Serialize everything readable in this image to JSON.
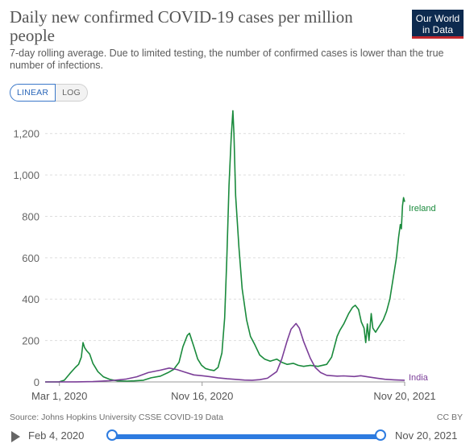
{
  "header": {
    "title": "Daily new confirmed COVID-19 cases per million people",
    "subtitle": "7-day rolling average. Due to limited testing, the number of confirmed cases is lower than the true number of infections.",
    "logo_line1": "Our World",
    "logo_line2": "in Data"
  },
  "scale_toggle": {
    "linear_label": "LINEAR",
    "log_label": "LOG",
    "selected": "LINEAR"
  },
  "footer": {
    "source": "Source: Johns Hopkins University CSSE COVID-19 Data",
    "license": "CC BY"
  },
  "timeline": {
    "start_label": "Feb 4, 2020",
    "end_label": "Nov 20, 2021"
  },
  "colors": {
    "ireland": "#1a8a3c",
    "india": "#7b3e98",
    "axis": "#666666",
    "grid": "#dddddd"
  },
  "chart_data": {
    "type": "line",
    "title": "Daily new confirmed COVID-19 cases per million people",
    "xlabel": "",
    "ylabel": "",
    "xlim": [
      "2020-02-04",
      "2021-11-20"
    ],
    "ylim": [
      0,
      1300
    ],
    "yticks": [
      0,
      200,
      400,
      600,
      800,
      1000,
      1200
    ],
    "ytick_labels": [
      "0",
      "200",
      "400",
      "600",
      "800",
      "1,000",
      "1,200"
    ],
    "xticks": [
      "2020-03-01",
      "2020-11-16",
      "2021-11-20"
    ],
    "xtick_labels": [
      "Mar 1, 2020",
      "Nov 16, 2020",
      "Nov 20, 2021"
    ],
    "grid": true,
    "legend": "inline-right",
    "series": [
      {
        "name": "Ireland",
        "points": [
          [
            "2020-02-04",
            0
          ],
          [
            "2020-02-29",
            0
          ],
          [
            "2020-03-10",
            8
          ],
          [
            "2020-03-20",
            40
          ],
          [
            "2020-03-30",
            70
          ],
          [
            "2020-04-05",
            85
          ],
          [
            "2020-04-10",
            120
          ],
          [
            "2020-04-13",
            190
          ],
          [
            "2020-04-16",
            165
          ],
          [
            "2020-04-20",
            150
          ],
          [
            "2020-04-25",
            135
          ],
          [
            "2020-05-01",
            90
          ],
          [
            "2020-05-10",
            50
          ],
          [
            "2020-05-20",
            25
          ],
          [
            "2020-06-01",
            12
          ],
          [
            "2020-06-15",
            5
          ],
          [
            "2020-07-01",
            4
          ],
          [
            "2020-07-15",
            5
          ],
          [
            "2020-08-01",
            8
          ],
          [
            "2020-08-15",
            20
          ],
          [
            "2020-09-01",
            28
          ],
          [
            "2020-09-15",
            45
          ],
          [
            "2020-09-25",
            60
          ],
          [
            "2020-10-05",
            95
          ],
          [
            "2020-10-12",
            170
          ],
          [
            "2020-10-20",
            225
          ],
          [
            "2020-10-24",
            235
          ],
          [
            "2020-11-01",
            170
          ],
          [
            "2020-11-08",
            110
          ],
          [
            "2020-11-15",
            80
          ],
          [
            "2020-11-22",
            65
          ],
          [
            "2020-12-01",
            58
          ],
          [
            "2020-12-08",
            55
          ],
          [
            "2020-12-15",
            70
          ],
          [
            "2020-12-22",
            140
          ],
          [
            "2020-12-27",
            310
          ],
          [
            "2020-12-31",
            600
          ],
          [
            "2021-01-04",
            950
          ],
          [
            "2021-01-08",
            1180
          ],
          [
            "2021-01-11",
            1310
          ],
          [
            "2021-01-13",
            1200
          ],
          [
            "2021-01-16",
            900
          ],
          [
            "2021-01-22",
            650
          ],
          [
            "2021-01-28",
            450
          ],
          [
            "2021-02-05",
            300
          ],
          [
            "2021-02-12",
            220
          ],
          [
            "2021-02-20",
            180
          ],
          [
            "2021-03-01",
            130
          ],
          [
            "2021-03-10",
            110
          ],
          [
            "2021-03-20",
            100
          ],
          [
            "2021-04-01",
            110
          ],
          [
            "2021-04-10",
            95
          ],
          [
            "2021-04-20",
            85
          ],
          [
            "2021-05-01",
            90
          ],
          [
            "2021-05-10",
            80
          ],
          [
            "2021-05-20",
            75
          ],
          [
            "2021-06-01",
            80
          ],
          [
            "2021-06-15",
            75
          ],
          [
            "2021-07-01",
            85
          ],
          [
            "2021-07-10",
            120
          ],
          [
            "2021-07-20",
            220
          ],
          [
            "2021-07-25",
            250
          ],
          [
            "2021-08-01",
            280
          ],
          [
            "2021-08-10",
            330
          ],
          [
            "2021-08-17",
            360
          ],
          [
            "2021-08-22",
            370
          ],
          [
            "2021-08-28",
            350
          ],
          [
            "2021-09-02",
            290
          ],
          [
            "2021-09-07",
            260
          ],
          [
            "2021-09-10",
            190
          ],
          [
            "2021-09-13",
            280
          ],
          [
            "2021-09-16",
            200
          ],
          [
            "2021-09-20",
            330
          ],
          [
            "2021-09-23",
            260
          ],
          [
            "2021-09-28",
            240
          ],
          [
            "2021-10-05",
            270
          ],
          [
            "2021-10-12",
            300
          ],
          [
            "2021-10-18",
            340
          ],
          [
            "2021-10-24",
            400
          ],
          [
            "2021-10-30",
            500
          ],
          [
            "2021-11-05",
            600
          ],
          [
            "2021-11-09",
            700
          ],
          [
            "2021-11-12",
            760
          ],
          [
            "2021-11-14",
            740
          ],
          [
            "2021-11-16",
            850
          ],
          [
            "2021-11-18",
            890
          ],
          [
            "2021-11-20",
            870
          ]
        ]
      },
      {
        "name": "India",
        "points": [
          [
            "2020-02-04",
            0
          ],
          [
            "2020-04-01",
            0.3
          ],
          [
            "2020-05-01",
            1.5
          ],
          [
            "2020-06-01",
            6
          ],
          [
            "2020-07-01",
            14
          ],
          [
            "2020-07-20",
            25
          ],
          [
            "2020-08-10",
            45
          ],
          [
            "2020-09-01",
            57
          ],
          [
            "2020-09-17",
            67
          ],
          [
            "2020-10-01",
            60
          ],
          [
            "2020-10-15",
            48
          ],
          [
            "2020-11-01",
            34
          ],
          [
            "2020-11-16",
            30
          ],
          [
            "2020-12-01",
            25
          ],
          [
            "2020-12-15",
            20
          ],
          [
            "2021-01-01",
            15
          ],
          [
            "2021-02-01",
            9
          ],
          [
            "2021-02-15",
            8
          ],
          [
            "2021-03-01",
            11
          ],
          [
            "2021-03-15",
            18
          ],
          [
            "2021-04-01",
            50
          ],
          [
            "2021-04-10",
            110
          ],
          [
            "2021-04-20",
            200
          ],
          [
            "2021-04-27",
            255
          ],
          [
            "2021-05-06",
            282
          ],
          [
            "2021-05-12",
            260
          ],
          [
            "2021-05-20",
            195
          ],
          [
            "2021-06-01",
            115
          ],
          [
            "2021-06-10",
            70
          ],
          [
            "2021-06-20",
            45
          ],
          [
            "2021-07-01",
            32
          ],
          [
            "2021-07-20",
            28
          ],
          [
            "2021-08-01",
            29
          ],
          [
            "2021-08-20",
            26
          ],
          [
            "2021-09-01",
            30
          ],
          [
            "2021-09-15",
            24
          ],
          [
            "2021-10-01",
            18
          ],
          [
            "2021-10-15",
            13
          ],
          [
            "2021-11-01",
            10
          ],
          [
            "2021-11-20",
            8
          ]
        ]
      }
    ]
  }
}
